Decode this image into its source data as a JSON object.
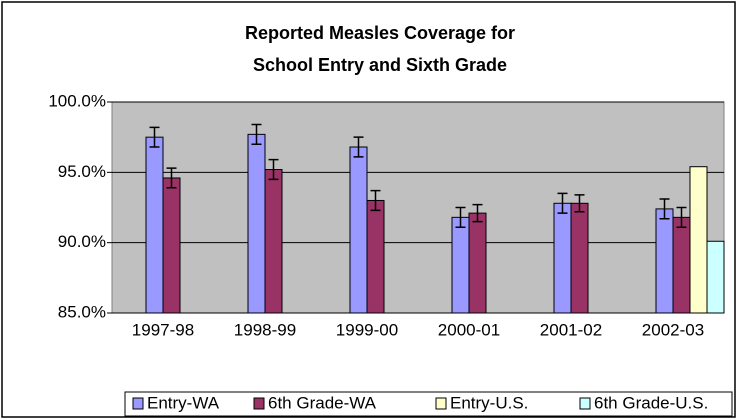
{
  "chart_data": {
    "type": "bar",
    "title": [
      "Reported Measles Coverage for",
      "School Entry and Sixth Grade"
    ],
    "categories": [
      "1997-98",
      "1998-99",
      "1999-00",
      "2000-01",
      "2001-02",
      "2002-03"
    ],
    "series": [
      {
        "name": "Entry-WA",
        "color": "#9999ff",
        "values": [
          97.5,
          97.7,
          96.8,
          91.8,
          92.8,
          92.4
        ],
        "errors": [
          0.7,
          0.7,
          0.7,
          0.7,
          0.7,
          0.7
        ]
      },
      {
        "name": "6th Grade-WA",
        "color": "#993366",
        "values": [
          94.6,
          95.2,
          93.0,
          92.1,
          92.8,
          91.8
        ],
        "errors": [
          0.7,
          0.7,
          0.7,
          0.6,
          0.6,
          0.7
        ]
      },
      {
        "name": "Entry-U.S.",
        "color": "#ffffcc",
        "values": [
          null,
          null,
          null,
          null,
          null,
          95.4
        ]
      },
      {
        "name": "6th Grade-U.S.",
        "color": "#ccffff",
        "values": [
          null,
          null,
          null,
          null,
          null,
          90.1
        ]
      }
    ],
    "ylim": [
      85,
      100
    ],
    "yticks": [
      {
        "value": 85,
        "label": "85.0%"
      },
      {
        "value": 90,
        "label": "90.0%"
      },
      {
        "value": 95,
        "label": "95.0%"
      },
      {
        "value": 100,
        "label": "100.0%"
      }
    ],
    "grid": true,
    "legend": "bottom",
    "plot_background": "#c0c0c0"
  }
}
